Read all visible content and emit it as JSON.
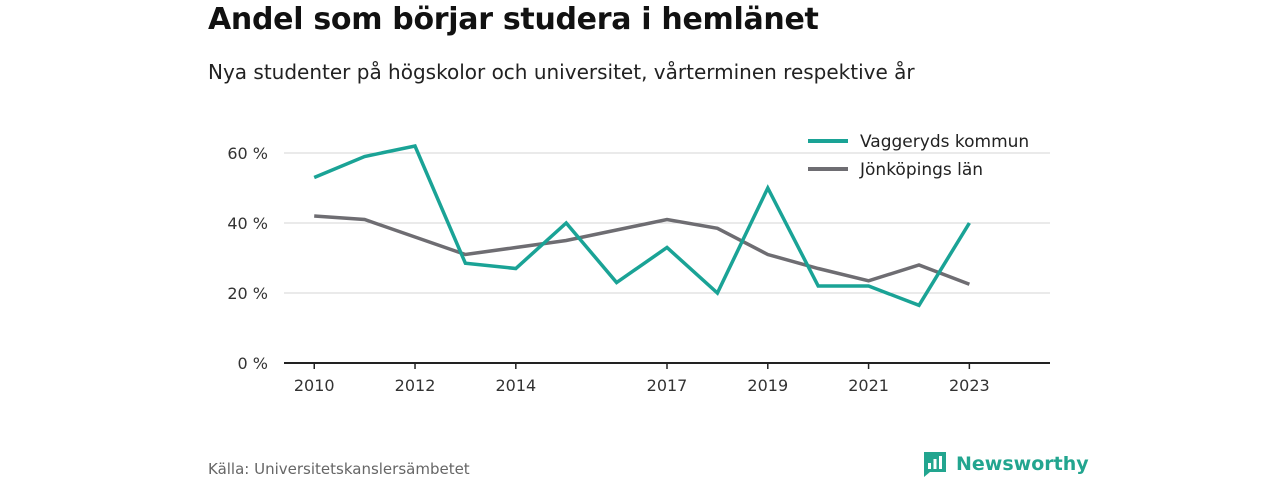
{
  "title": "Andel som börjar studera i hemlänet",
  "subtitle": "Nya studenter på högskolor och universitet, vårterminen respektive år",
  "source": "Källa: Universitetskanslersämbetet",
  "brand": {
    "name": "Newsworthy",
    "icon": "newsworthy-logo-icon",
    "color": "#22a58f"
  },
  "chart_data": {
    "type": "line",
    "title": "Andel som börjar studera i hemlänet",
    "ylim": [
      0,
      70
    ],
    "yticks": [
      0,
      20,
      40,
      60
    ],
    "ytick_labels": [
      "0 %",
      "20 %",
      "40 %",
      "60 %"
    ],
    "xlim": [
      2009.4,
      2024.6
    ],
    "xticks": [
      2010,
      2012,
      2014,
      2017,
      2019,
      2021,
      2023
    ],
    "x": [
      2010,
      2011,
      2012,
      2013,
      2014,
      2015,
      2016,
      2017,
      2018,
      2019,
      2020,
      2021,
      2022,
      2023
    ],
    "grid": true,
    "legend_position": "top-right",
    "series": [
      {
        "name": "Vaggeryds kommun",
        "color": "#1aa396",
        "values": [
          53,
          59,
          62,
          28.5,
          27,
          40,
          23,
          33,
          20,
          50,
          22,
          22,
          16.5,
          40
        ]
      },
      {
        "name": "Jönköpings län",
        "color": "#6e6d72",
        "values": [
          42,
          41,
          36,
          31,
          33,
          35,
          38,
          41,
          38.5,
          31,
          27,
          23.5,
          28,
          22.5
        ]
      }
    ]
  }
}
